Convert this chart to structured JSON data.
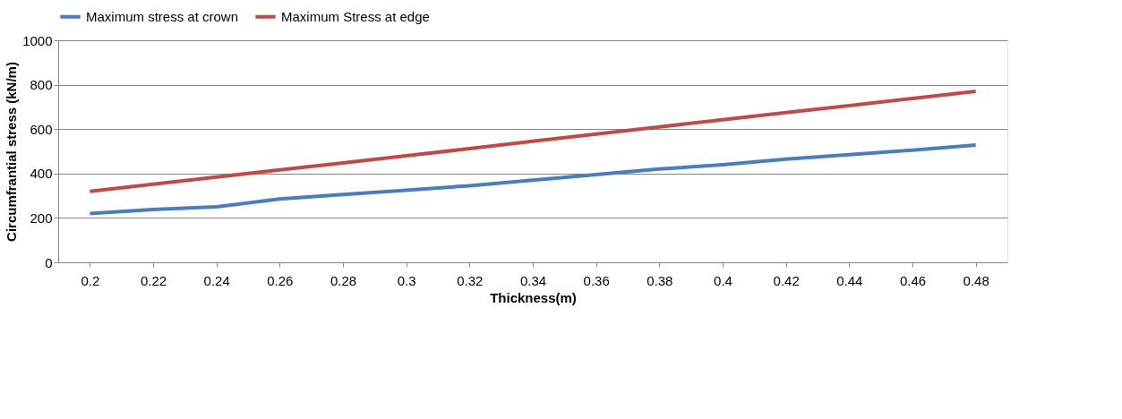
{
  "chart_data": {
    "type": "line",
    "xlabel": "Thickness(m)",
    "ylabel": "Circumfrantial stress (kN/m)",
    "categories": [
      "0.2",
      "0.22",
      "0.24",
      "0.26",
      "0.28",
      "0.3",
      "0.32",
      "0.34",
      "0.36",
      "0.38",
      "0.4",
      "0.42",
      "0.44",
      "0.46",
      "0.48"
    ],
    "series": [
      {
        "name": "Maximum stress at crown",
        "color": "#4a7ebb",
        "values": [
          220,
          238,
          250,
          285,
          305,
          325,
          345,
          370,
          395,
          420,
          440,
          465,
          485,
          505,
          528
        ]
      },
      {
        "name": "Maximum Stress at edge",
        "color": "#be4b48",
        "values": [
          320,
          352,
          384,
          416,
          448,
          480,
          512,
          545,
          578,
          610,
          642,
          674,
          706,
          738,
          770
        ]
      }
    ],
    "ylim": [
      0,
      1000
    ],
    "yticks": [
      0,
      200,
      400,
      600,
      800,
      1000
    ],
    "grid": "y",
    "legend": "top",
    "marker": "none",
    "line_style": "solid"
  }
}
